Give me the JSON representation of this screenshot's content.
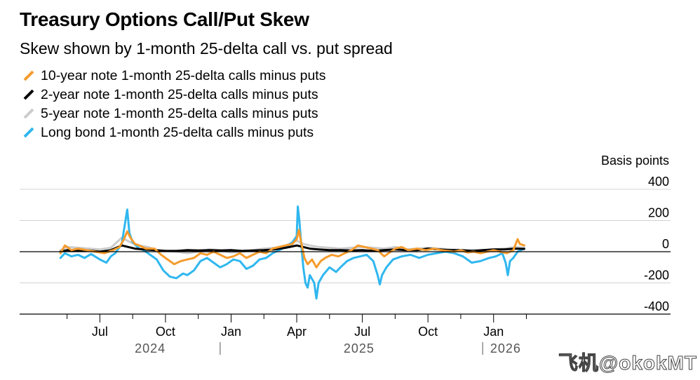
{
  "header": {
    "title": "Treasury Options Call/Put Skew",
    "subtitle": "Skew shown by 1-month 25-delta call vs. put spread"
  },
  "legend": [
    {
      "label": "10-year note 1-month 25-delta calls minus puts",
      "color": "#f59b2c"
    },
    {
      "label": "2-year note 1-month 25-delta calls minus puts",
      "color": "#000000"
    },
    {
      "label": "5-year note 1-month 25-delta calls minus puts",
      "color": "#cccccc"
    },
    {
      "label": "Long bond 1-month 25-delta calls minus puts",
      "color": "#2fb7ef"
    }
  ],
  "watermark": "飞机@okokMT",
  "chart_data": {
    "type": "line",
    "ylabel": "Basis points",
    "ylim": [
      -400,
      400
    ],
    "y_ticks": [
      {
        "value": 400,
        "label": "400"
      },
      {
        "value": 200,
        "label": "200"
      },
      {
        "value": 0,
        "label": "0"
      },
      {
        "value": -200,
        "label": "-200"
      },
      {
        "value": -400,
        "label": "-400"
      }
    ],
    "x_domain": [
      0,
      27
    ],
    "x_ticks": [
      {
        "pos": 2,
        "label": "Jul"
      },
      {
        "pos": 5,
        "label": "Oct"
      },
      {
        "pos": 8,
        "label": "Jan"
      },
      {
        "pos": 11,
        "label": "Apr"
      },
      {
        "pos": 14,
        "label": "Jul"
      },
      {
        "pos": 17,
        "label": "Oct"
      },
      {
        "pos": 20,
        "label": "Jan"
      }
    ],
    "minor_ticks": [
      0.5,
      3.5,
      6.5,
      9.5,
      12.5,
      15.5,
      18.5,
      21.5
    ],
    "years": [
      {
        "label": "2024",
        "pos": 4.3,
        "sep": null
      },
      {
        "label": "2025",
        "pos": 13.85,
        "sep": 7.5
      },
      {
        "label": "2026",
        "pos": 20.55,
        "sep": 19.5
      }
    ],
    "x_unit": "months since 2024-05-01",
    "series": [
      {
        "name": "5-year note 1-month 25-delta calls minus puts",
        "color": "#cccccc",
        "points": [
          [
            0.2,
            10
          ],
          [
            0.5,
            30
          ],
          [
            1,
            25
          ],
          [
            1.5,
            20
          ],
          [
            2,
            15
          ],
          [
            2.5,
            25
          ],
          [
            3,
            90
          ],
          [
            3.4,
            60
          ],
          [
            3.8,
            40
          ],
          [
            4.2,
            30
          ],
          [
            4.6,
            10
          ],
          [
            5,
            5
          ],
          [
            5.5,
            0
          ],
          [
            6,
            -10
          ],
          [
            6.5,
            0
          ],
          [
            7,
            15
          ],
          [
            7.5,
            10
          ],
          [
            8,
            -5
          ],
          [
            8.5,
            0
          ],
          [
            9,
            10
          ],
          [
            9.5,
            20
          ],
          [
            10,
            25
          ],
          [
            10.5,
            40
          ],
          [
            11,
            70
          ],
          [
            11.3,
            50
          ],
          [
            11.6,
            40
          ],
          [
            12,
            30
          ],
          [
            12.5,
            25
          ],
          [
            13,
            20
          ],
          [
            13.5,
            25
          ],
          [
            14,
            30
          ],
          [
            14.5,
            25
          ],
          [
            15,
            20
          ],
          [
            15.5,
            30
          ],
          [
            16,
            15
          ],
          [
            16.5,
            20
          ],
          [
            17,
            25
          ],
          [
            17.5,
            20
          ],
          [
            18,
            15
          ],
          [
            18.5,
            10
          ],
          [
            19,
            10
          ],
          [
            19.5,
            5
          ],
          [
            20,
            15
          ],
          [
            20.5,
            20
          ],
          [
            21,
            30
          ],
          [
            21.4,
            25
          ]
        ]
      },
      {
        "name": "Long bond 1-month 25-delta calls minus puts",
        "color": "#2fb7ef",
        "points": [
          [
            0.2,
            -40
          ],
          [
            0.4,
            -10
          ],
          [
            0.7,
            -30
          ],
          [
            1,
            -20
          ],
          [
            1.3,
            -40
          ],
          [
            1.6,
            -15
          ],
          [
            2,
            -50
          ],
          [
            2.3,
            -70
          ],
          [
            2.5,
            -30
          ],
          [
            2.7,
            -10
          ],
          [
            3,
            50
          ],
          [
            3.15,
            180
          ],
          [
            3.25,
            270
          ],
          [
            3.35,
            120
          ],
          [
            3.5,
            60
          ],
          [
            3.8,
            20
          ],
          [
            4,
            10
          ],
          [
            4.3,
            -20
          ],
          [
            4.6,
            -50
          ],
          [
            4.9,
            -120
          ],
          [
            5.2,
            -160
          ],
          [
            5.5,
            -170
          ],
          [
            5.8,
            -140
          ],
          [
            6,
            -150
          ],
          [
            6.3,
            -120
          ],
          [
            6.6,
            -60
          ],
          [
            6.9,
            -40
          ],
          [
            7.2,
            -70
          ],
          [
            7.5,
            -100
          ],
          [
            7.8,
            -80
          ],
          [
            8.1,
            -50
          ],
          [
            8.4,
            -60
          ],
          [
            8.7,
            -110
          ],
          [
            9,
            -90
          ],
          [
            9.3,
            -50
          ],
          [
            9.6,
            -40
          ],
          [
            9.9,
            -10
          ],
          [
            10.2,
            10
          ],
          [
            10.5,
            30
          ],
          [
            10.8,
            60
          ],
          [
            11,
            100
          ],
          [
            11.05,
            290
          ],
          [
            11.12,
            200
          ],
          [
            11.2,
            60
          ],
          [
            11.3,
            -100
          ],
          [
            11.4,
            -200
          ],
          [
            11.5,
            -230
          ],
          [
            11.6,
            -150
          ],
          [
            11.8,
            -200
          ],
          [
            11.9,
            -300
          ],
          [
            12,
            -200
          ],
          [
            12.2,
            -150
          ],
          [
            12.5,
            -100
          ],
          [
            12.8,
            -130
          ],
          [
            13,
            -100
          ],
          [
            13.3,
            -60
          ],
          [
            13.6,
            -40
          ],
          [
            13.9,
            -30
          ],
          [
            14.2,
            -20
          ],
          [
            14.5,
            -60
          ],
          [
            14.7,
            -150
          ],
          [
            14.8,
            -210
          ],
          [
            14.9,
            -150
          ],
          [
            15.1,
            -100
          ],
          [
            15.4,
            -50
          ],
          [
            15.8,
            -30
          ],
          [
            16.2,
            -20
          ],
          [
            16.6,
            -40
          ],
          [
            17,
            -20
          ],
          [
            17.4,
            -10
          ],
          [
            17.8,
            0
          ],
          [
            18.2,
            -10
          ],
          [
            18.6,
            -30
          ],
          [
            19,
            -70
          ],
          [
            19.4,
            -60
          ],
          [
            19.8,
            -40
          ],
          [
            20.1,
            -30
          ],
          [
            20.4,
            -10
          ],
          [
            20.55,
            -70
          ],
          [
            20.65,
            -150
          ],
          [
            20.75,
            -60
          ],
          [
            20.9,
            -40
          ],
          [
            21.1,
            0
          ],
          [
            21.4,
            20
          ]
        ]
      },
      {
        "name": "2-year note 1-month 25-delta calls minus puts",
        "color": "#000000",
        "points": [
          [
            0.2,
            0
          ],
          [
            0.5,
            10
          ],
          [
            1,
            5
          ],
          [
            1.5,
            8
          ],
          [
            2,
            0
          ],
          [
            2.5,
            10
          ],
          [
            3,
            40
          ],
          [
            3.3,
            30
          ],
          [
            3.6,
            20
          ],
          [
            4,
            15
          ],
          [
            4.5,
            10
          ],
          [
            5,
            5
          ],
          [
            5.5,
            5
          ],
          [
            6,
            10
          ],
          [
            6.5,
            8
          ],
          [
            7,
            10
          ],
          [
            7.5,
            8
          ],
          [
            8,
            10
          ],
          [
            8.5,
            5
          ],
          [
            9,
            8
          ],
          [
            9.5,
            10
          ],
          [
            10,
            15
          ],
          [
            10.5,
            25
          ],
          [
            11,
            40
          ],
          [
            11.3,
            30
          ],
          [
            11.6,
            20
          ],
          [
            12,
            15
          ],
          [
            12.5,
            10
          ],
          [
            13,
            10
          ],
          [
            13.5,
            8
          ],
          [
            14,
            10
          ],
          [
            14.5,
            5
          ],
          [
            15,
            10
          ],
          [
            15.5,
            15
          ],
          [
            16,
            10
          ],
          [
            16.5,
            10
          ],
          [
            17,
            20
          ],
          [
            17.5,
            15
          ],
          [
            18,
            10
          ],
          [
            18.5,
            10
          ],
          [
            19,
            5
          ],
          [
            19.5,
            10
          ],
          [
            20,
            15
          ],
          [
            20.5,
            15
          ],
          [
            21,
            20
          ],
          [
            21.4,
            18
          ]
        ]
      },
      {
        "name": "10-year note 1-month 25-delta calls minus puts",
        "color": "#f59b2c",
        "points": [
          [
            0.2,
            -10
          ],
          [
            0.4,
            40
          ],
          [
            0.7,
            10
          ],
          [
            1,
            20
          ],
          [
            1.4,
            10
          ],
          [
            1.8,
            0
          ],
          [
            2.2,
            -10
          ],
          [
            2.6,
            10
          ],
          [
            2.9,
            30
          ],
          [
            3.1,
            80
          ],
          [
            3.25,
            130
          ],
          [
            3.4,
            90
          ],
          [
            3.6,
            50
          ],
          [
            3.8,
            40
          ],
          [
            4.1,
            20
          ],
          [
            4.5,
            20
          ],
          [
            4.8,
            -20
          ],
          [
            5.1,
            -50
          ],
          [
            5.4,
            -80
          ],
          [
            5.7,
            -60
          ],
          [
            6,
            -50
          ],
          [
            6.3,
            -40
          ],
          [
            6.6,
            -10
          ],
          [
            6.9,
            -20
          ],
          [
            7.2,
            0
          ],
          [
            7.5,
            -20
          ],
          [
            7.8,
            -40
          ],
          [
            8.1,
            -30
          ],
          [
            8.4,
            -10
          ],
          [
            8.7,
            -40
          ],
          [
            9,
            -20
          ],
          [
            9.3,
            0
          ],
          [
            9.6,
            -10
          ],
          [
            9.9,
            20
          ],
          [
            10.2,
            30
          ],
          [
            10.5,
            40
          ],
          [
            10.8,
            50
          ],
          [
            11,
            80
          ],
          [
            11.1,
            140
          ],
          [
            11.2,
            60
          ],
          [
            11.35,
            -40
          ],
          [
            11.5,
            -80
          ],
          [
            11.7,
            -50
          ],
          [
            11.9,
            -100
          ],
          [
            12.1,
            -60
          ],
          [
            12.3,
            -40
          ],
          [
            12.6,
            -20
          ],
          [
            12.9,
            -30
          ],
          [
            13.2,
            -10
          ],
          [
            13.5,
            10
          ],
          [
            13.8,
            40
          ],
          [
            14.1,
            30
          ],
          [
            14.4,
            20
          ],
          [
            14.7,
            10
          ],
          [
            15,
            -30
          ],
          [
            15.2,
            -10
          ],
          [
            15.5,
            20
          ],
          [
            15.8,
            30
          ],
          [
            16.1,
            10
          ],
          [
            16.5,
            20
          ],
          [
            16.9,
            10
          ],
          [
            17.3,
            20
          ],
          [
            17.6,
            10
          ],
          [
            17.9,
            5
          ],
          [
            18.2,
            0
          ],
          [
            18.5,
            10
          ],
          [
            18.8,
            -5
          ],
          [
            19.1,
            0
          ],
          [
            19.4,
            -10
          ],
          [
            19.7,
            0
          ],
          [
            20,
            10
          ],
          [
            20.3,
            0
          ],
          [
            20.6,
            -10
          ],
          [
            20.9,
            10
          ],
          [
            21.1,
            80
          ],
          [
            21.2,
            50
          ],
          [
            21.4,
            40
          ]
        ]
      }
    ]
  }
}
